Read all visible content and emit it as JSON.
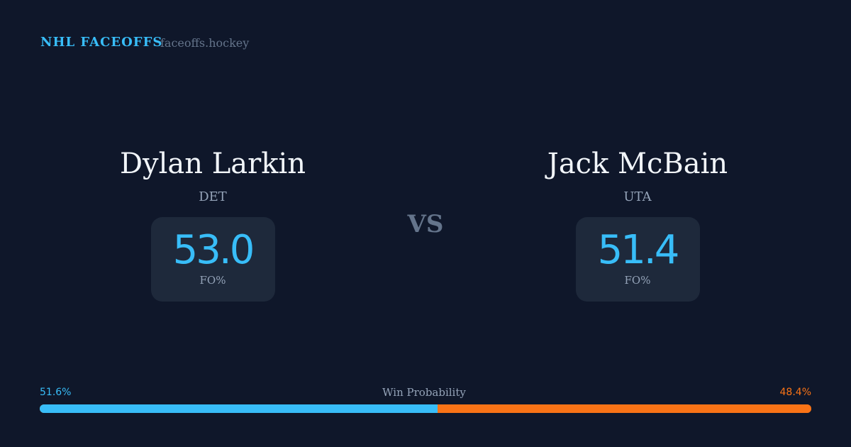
{
  "header": {
    "brand": "NHL FACEOFFS",
    "site": "faceoffs.hockey"
  },
  "players": [
    {
      "name": "Dylan Larkin",
      "team": "DET",
      "fo_pct": "53.0",
      "fo_label": "FO%"
    },
    {
      "name": "Jack McBain",
      "team": "UTA",
      "fo_pct": "51.4",
      "fo_label": "FO%"
    }
  ],
  "vs": "VS",
  "win_probability": {
    "label": "Win Probability",
    "left": "51.6%",
    "right": "48.4%",
    "left_value": 51.6,
    "colors": {
      "left": "#38bdf8",
      "right": "#f97316"
    }
  }
}
